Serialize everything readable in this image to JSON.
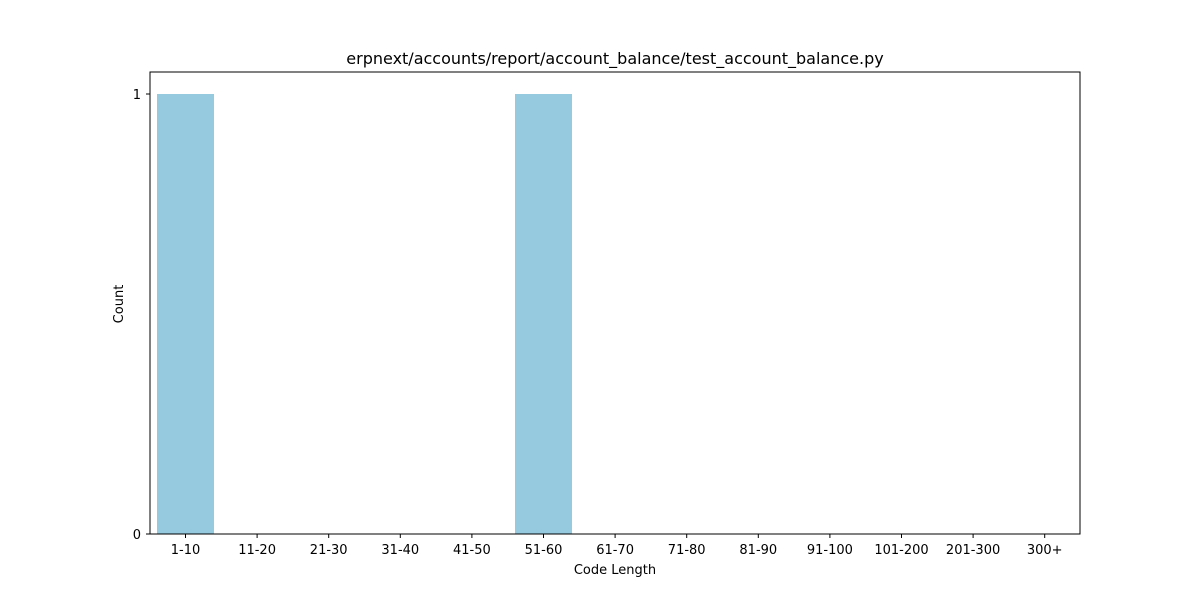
{
  "chart_data": {
    "type": "bar",
    "title": "erpnext/accounts/report/account_balance/test_account_balance.py",
    "xlabel": "Code Length",
    "ylabel": "Count",
    "categories": [
      "1-10",
      "11-20",
      "21-30",
      "31-40",
      "41-50",
      "51-60",
      "61-70",
      "71-80",
      "81-90",
      "91-100",
      "101-200",
      "201-300",
      "300+"
    ],
    "values": [
      1,
      0,
      0,
      0,
      0,
      1,
      0,
      0,
      0,
      0,
      0,
      0,
      0
    ],
    "ylim": [
      0,
      1
    ],
    "yticks": [
      "0",
      "1"
    ],
    "bar_color": "#96cadf",
    "grid": false,
    "legend": "none"
  }
}
